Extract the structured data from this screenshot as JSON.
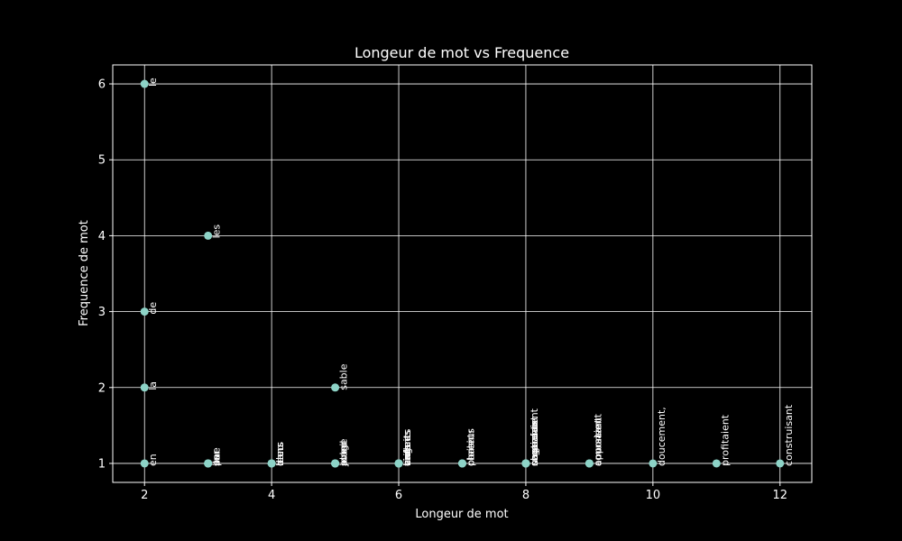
{
  "colors": {
    "background": "#000000",
    "foreground": "#ffffff",
    "grid": "#ffffff",
    "marker": "#8dd3c7"
  },
  "chart_data": {
    "type": "scatter",
    "title": "Longeur de mot vs Frequence",
    "xlabel": "Longeur de mot",
    "ylabel": "Frequence de mot",
    "xlim": [
      1.5,
      12.5
    ],
    "ylim": [
      0.75,
      6.25
    ],
    "x_ticks": [
      2,
      4,
      6,
      8,
      10,
      12
    ],
    "y_ticks": [
      1,
      2,
      3,
      4,
      5,
      6
    ],
    "grid": true,
    "legend": "none",
    "points": [
      {
        "x": 2,
        "y": 6,
        "label": "le"
      },
      {
        "x": 3,
        "y": 4,
        "label": "les"
      },
      {
        "x": 2,
        "y": 3,
        "label": "de"
      },
      {
        "x": 2,
        "y": 2,
        "label": "la"
      },
      {
        "x": 5,
        "y": 2,
        "label": "sable"
      },
      {
        "x": 2,
        "y": 1,
        "label": "en"
      },
      {
        "x": 3,
        "y": 1,
        "label": "ils"
      },
      {
        "x": 3,
        "y": 1,
        "label": "par"
      },
      {
        "x": 3,
        "y": 1,
        "label": "sur"
      },
      {
        "x": 3,
        "y": 1,
        "label": "une"
      },
      {
        "x": 4,
        "y": 1,
        "label": "dans"
      },
      {
        "x": 4,
        "y": 1,
        "label": "leurs"
      },
      {
        "x": 4,
        "y": 1,
        "label": "bleu"
      },
      {
        "x": 5,
        "y": 1,
        "label": "plage"
      },
      {
        "x": 5,
        "y": 1,
        "label": "soleil"
      },
      {
        "x": 5,
        "y": 1,
        "label": "jouer"
      },
      {
        "x": 5,
        "y": 1,
        "label": "avec"
      },
      {
        "x": 6,
        "y": 1,
        "label": "vagues"
      },
      {
        "x": 6,
        "y": 1,
        "label": "enfants"
      },
      {
        "x": 6,
        "y": 1,
        "label": "brillait"
      },
      {
        "x": 6,
        "y": 1,
        "label": "ciel"
      },
      {
        "x": 6,
        "y": 1,
        "label": "rires"
      },
      {
        "x": 7,
        "y": 1,
        "label": "chaleur"
      },
      {
        "x": 7,
        "y": 1,
        "label": "parents"
      },
      {
        "x": 7,
        "y": 1,
        "label": "plaisir"
      },
      {
        "x": 8,
        "y": 1,
        "label": "chateaux"
      },
      {
        "x": 8,
        "y": 1,
        "label": "nageaient"
      },
      {
        "x": 8,
        "y": 1,
        "label": "souriants"
      },
      {
        "x": 8,
        "y": 1,
        "label": "regardaient"
      },
      {
        "x": 9,
        "y": 1,
        "label": "amusaient"
      },
      {
        "x": 9,
        "y": 1,
        "label": "apportant"
      },
      {
        "x": 9,
        "y": 1,
        "label": "couraient"
      },
      {
        "x": 10,
        "y": 1,
        "label": "doucement,"
      },
      {
        "x": 11,
        "y": 1,
        "label": "profitaient"
      },
      {
        "x": 12,
        "y": 1,
        "label": "construisant"
      }
    ]
  }
}
